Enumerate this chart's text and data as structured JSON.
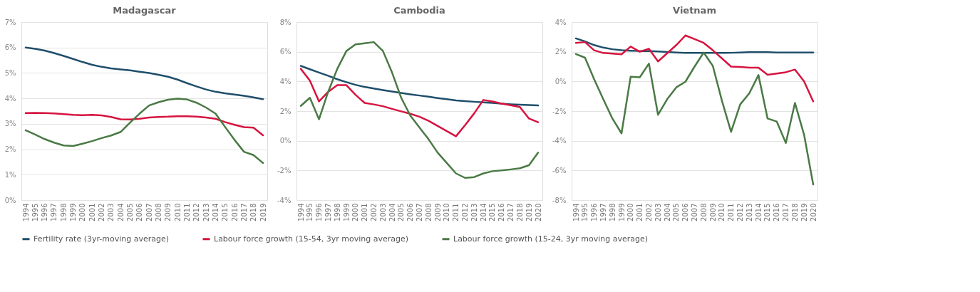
{
  "chart_data": [
    {
      "type": "line",
      "title": "Madagascar",
      "categories": [
        "1994",
        "1995",
        "1996",
        "1997",
        "1998",
        "1999",
        "2000",
        "2001",
        "2002",
        "2003",
        "2004",
        "2005",
        "2006",
        "2007",
        "2008",
        "2009",
        "2010",
        "2011",
        "2012",
        "2013",
        "2014",
        "2015",
        "2016",
        "2017",
        "2018",
        "2019"
      ],
      "ylim": [
        0,
        7
      ],
      "yticks": [
        {
          "value": 0,
          "label": "0%"
        },
        {
          "value": 1,
          "label": "1%"
        },
        {
          "value": 2,
          "label": "2%"
        },
        {
          "value": 3,
          "label": "3%"
        },
        {
          "value": 4,
          "label": "4%"
        },
        {
          "value": 5,
          "label": "5%"
        },
        {
          "value": 6,
          "label": "6%"
        },
        {
          "value": 7,
          "label": "7%"
        }
      ],
      "grid": "y",
      "legend": "bottom",
      "line_style": "solid",
      "marker": "none",
      "series": [
        {
          "name": "Fertility rate (3yr-moving average)",
          "color": "#1f4e6b",
          "values": [
            6.0,
            5.95,
            5.88,
            5.78,
            5.67,
            5.55,
            5.43,
            5.32,
            5.24,
            5.18,
            5.14,
            5.1,
            5.05,
            5.0,
            4.93,
            4.85,
            4.74,
            4.6,
            4.47,
            4.35,
            4.26,
            4.2,
            4.15,
            4.1,
            4.04,
            3.97
          ]
        },
        {
          "name": "Labour force growth (15-54, 3yr moving average)",
          "color": "#d6143f",
          "values": [
            3.42,
            3.43,
            3.42,
            3.41,
            3.38,
            3.35,
            3.34,
            3.35,
            3.33,
            3.27,
            3.18,
            3.17,
            3.2,
            3.25,
            3.27,
            3.28,
            3.3,
            3.3,
            3.28,
            3.25,
            3.2,
            3.07,
            2.96,
            2.87,
            2.85,
            2.55
          ]
        },
        {
          "name": "Labour force growth (15-24, 3yr moving average)",
          "color": "#4a7a45",
          "values": [
            2.75,
            2.58,
            2.4,
            2.26,
            2.15,
            2.13,
            2.22,
            2.32,
            2.44,
            2.54,
            2.68,
            3.05,
            3.4,
            3.72,
            3.85,
            3.95,
            3.99,
            3.96,
            3.83,
            3.64,
            3.4,
            2.88,
            2.37,
            1.9,
            1.77,
            1.46
          ]
        }
      ]
    },
    {
      "type": "line",
      "title": "Cambodia",
      "categories": [
        "1994",
        "1995",
        "1996",
        "1997",
        "1998",
        "1999",
        "2000",
        "2001",
        "2002",
        "2003",
        "2004",
        "2005",
        "2006",
        "2007",
        "2008",
        "2009",
        "2010",
        "2011",
        "2012",
        "2013",
        "2014",
        "2015",
        "2016",
        "2017",
        "2018",
        "2019",
        "2020"
      ],
      "ylim": [
        -4,
        8
      ],
      "yticks": [
        {
          "value": -4,
          "label": "-4%"
        },
        {
          "value": -2,
          "label": "-2%"
        },
        {
          "value": 0,
          "label": "0%"
        },
        {
          "value": 2,
          "label": "2%"
        },
        {
          "value": 4,
          "label": "4%"
        },
        {
          "value": 6,
          "label": "6%"
        },
        {
          "value": 8,
          "label": "8%"
        }
      ],
      "grid": "y",
      "legend": "bottom",
      "line_style": "solid",
      "marker": "none",
      "series": [
        {
          "name": "Fertility rate (3yr-moving average)",
          "color": "#1f4e6b",
          "values": [
            5.05,
            4.82,
            4.6,
            4.38,
            4.15,
            3.95,
            3.77,
            3.63,
            3.52,
            3.42,
            3.32,
            3.22,
            3.13,
            3.05,
            2.97,
            2.88,
            2.8,
            2.72,
            2.67,
            2.63,
            2.59,
            2.55,
            2.5,
            2.46,
            2.43,
            2.41,
            2.38
          ]
        },
        {
          "name": "Labour force growth (15-54, 3yr moving average)",
          "color": "#d6143f",
          "values": [
            4.85,
            4.05,
            2.65,
            3.3,
            3.75,
            3.75,
            3.1,
            2.55,
            2.45,
            2.33,
            2.15,
            1.98,
            1.82,
            1.62,
            1.35,
            1.0,
            0.65,
            0.3,
            1.05,
            1.85,
            2.75,
            2.65,
            2.5,
            2.4,
            2.28,
            1.5,
            1.25
          ]
        },
        {
          "name": "Labour force growth (15-24, 3yr moving average)",
          "color": "#4a7a45",
          "values": [
            2.35,
            2.9,
            1.45,
            3.3,
            4.85,
            6.05,
            6.5,
            6.57,
            6.65,
            6.05,
            4.6,
            2.9,
            1.7,
            0.9,
            0.1,
            -0.8,
            -1.5,
            -2.2,
            -2.5,
            -2.45,
            -2.2,
            -2.05,
            -2.0,
            -1.93,
            -1.85,
            -1.65,
            -0.8
          ]
        }
      ]
    },
    {
      "type": "line",
      "title": "Vietnam",
      "categories": [
        "1994",
        "1995",
        "1996",
        "1997",
        "1998",
        "1999",
        "2000",
        "2001",
        "2002",
        "2003",
        "2004",
        "2005",
        "2006",
        "2007",
        "2008",
        "2009",
        "2010",
        "2011",
        "2012",
        "2013",
        "2014",
        "2015",
        "2016",
        "2017",
        "2018",
        "2019",
        "2020"
      ],
      "ylim": [
        -8,
        4
      ],
      "yticks": [
        {
          "value": -8,
          "label": "-8%"
        },
        {
          "value": -6,
          "label": "-6%"
        },
        {
          "value": -4,
          "label": "-4%"
        },
        {
          "value": -2,
          "label": "-2%"
        },
        {
          "value": 0,
          "label": "0%"
        },
        {
          "value": 2,
          "label": "2%"
        },
        {
          "value": 4,
          "label": "4%"
        }
      ],
      "grid": "y",
      "legend": "bottom",
      "line_style": "solid",
      "marker": "none",
      "series": [
        {
          "name": "Fertility rate (3yr-moving average)",
          "color": "#1f4e6b",
          "values": [
            2.9,
            2.7,
            2.45,
            2.28,
            2.17,
            2.1,
            2.07,
            2.05,
            2.05,
            2.02,
            1.98,
            1.95,
            1.92,
            1.92,
            1.92,
            1.92,
            1.92,
            1.93,
            1.95,
            1.97,
            1.97,
            1.97,
            1.95,
            1.95,
            1.95,
            1.95,
            1.95
          ]
        },
        {
          "name": "Labour force growth (15-54, 3yr moving average)",
          "color": "#d6143f",
          "values": [
            2.6,
            2.65,
            2.1,
            1.92,
            1.88,
            1.83,
            2.35,
            2.0,
            2.2,
            1.35,
            1.9,
            2.45,
            3.1,
            2.85,
            2.6,
            2.1,
            1.55,
            1.0,
            0.98,
            0.93,
            0.93,
            0.45,
            0.53,
            0.62,
            0.8,
            0.0,
            -1.35
          ]
        },
        {
          "name": "Labour force growth (15-24, 3yr moving average)",
          "color": "#4a7a45",
          "values": [
            1.85,
            1.6,
            0.15,
            -1.2,
            -2.5,
            -3.5,
            0.32,
            0.28,
            1.2,
            -2.25,
            -1.2,
            -0.4,
            -0.02,
            1.0,
            1.95,
            1.05,
            -1.3,
            -3.4,
            -1.55,
            -0.8,
            0.43,
            -2.5,
            -2.7,
            -4.15,
            -1.45,
            -3.6,
            -6.95
          ]
        }
      ]
    }
  ]
}
